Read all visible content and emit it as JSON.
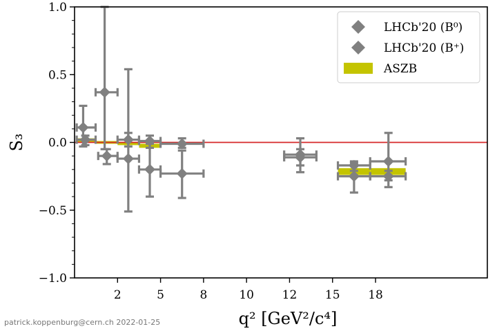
{
  "chart_data": {
    "type": "scatter",
    "ylabel": "S₃",
    "xlabel": "q² [GeV²/c⁴]",
    "xlim": [
      0,
      19.2
    ],
    "ylim": [
      -1.0,
      1.0
    ],
    "x_ticks": [
      2,
      5,
      8,
      10,
      12,
      15,
      18
    ],
    "x_tick_positions": [
      2.0,
      4.0,
      6.0,
      8.0,
      10.0,
      12.0,
      14.0
    ],
    "x_tick_labels": [
      "2",
      "5",
      "8",
      "10",
      "12",
      "15",
      "18"
    ],
    "y_ticks": [
      -1.0,
      -0.5,
      0.0,
      0.5,
      1.0
    ],
    "y_tick_labels": [
      "−1.0",
      "−0.5",
      "0.0",
      "0.5",
      "1.0"
    ],
    "grid": false,
    "reference_line": {
      "y": 0.0,
      "color": "#d62728"
    },
    "legend": {
      "placement": "top-right",
      "entries": [
        "LHCb'20 (B⁰)",
        "LHCb'20 (B⁺)",
        "ASZB"
      ]
    },
    "series": [
      {
        "name": "LHCb'20 (B⁰)",
        "color": "#808080",
        "marker": "diamond",
        "points": [
          {
            "x": 0.5,
            "y": 0.02,
            "xlo": 0.1,
            "xhi": 0.98,
            "ylo": -0.02,
            "yhi": 0.05
          },
          {
            "x": 1.5,
            "y": -0.1,
            "xlo": 1.1,
            "xhi": 2.0,
            "ylo": -0.16,
            "yhi": -0.05
          },
          {
            "x": 2.5,
            "y": 0.02,
            "xlo": 2.0,
            "xhi": 3.0,
            "ylo": -0.03,
            "yhi": 0.07
          },
          {
            "x": 3.5,
            "y": 0.01,
            "xlo": 3.0,
            "xhi": 4.0,
            "ylo": -0.04,
            "yhi": 0.05
          },
          {
            "x": 5.0,
            "y": -0.01,
            "xlo": 4.0,
            "xhi": 6.0,
            "ylo": -0.04,
            "yhi": 0.03
          },
          {
            "x": 10.5,
            "y": -0.11,
            "xlo": 9.75,
            "xhi": 11.25,
            "ylo": -0.17,
            "yhi": -0.05
          },
          {
            "x": 13.0,
            "y": -0.17,
            "xlo": 12.25,
            "xhi": 13.75,
            "ylo": -0.21,
            "yhi": -0.14
          },
          {
            "x": 14.6,
            "y": -0.25,
            "xlo": 13.75,
            "xhi": 15.4,
            "ylo": -0.28,
            "yhi": -0.21
          }
        ]
      },
      {
        "name": "LHCb'20 (B⁺)",
        "color": "#808080",
        "marker": "diamond",
        "points": [
          {
            "x": 0.4,
            "y": 0.11,
            "xlo": 0.1,
            "xhi": 0.98,
            "ylo": -0.03,
            "yhi": 0.27
          },
          {
            "x": 1.4,
            "y": 0.37,
            "xlo": 0.98,
            "xhi": 2.0,
            "ylo": -0.05,
            "yhi": 1.0
          },
          {
            "x": 2.5,
            "y": -0.12,
            "xlo": 2.0,
            "xhi": 3.0,
            "ylo": -0.51,
            "yhi": 0.54
          },
          {
            "x": 3.5,
            "y": -0.2,
            "xlo": 3.0,
            "xhi": 4.0,
            "ylo": -0.4,
            "yhi": -0.01
          },
          {
            "x": 5.0,
            "y": -0.23,
            "xlo": 4.0,
            "xhi": 6.0,
            "ylo": -0.41,
            "yhi": -0.06
          },
          {
            "x": 10.5,
            "y": -0.09,
            "xlo": 9.75,
            "xhi": 11.25,
            "ylo": -0.22,
            "yhi": 0.03
          },
          {
            "x": 13.0,
            "y": -0.25,
            "xlo": 12.25,
            "xhi": 13.75,
            "ylo": -0.37,
            "yhi": -0.15
          },
          {
            "x": 14.6,
            "y": -0.14,
            "xlo": 13.75,
            "xhi": 15.4,
            "ylo": -0.33,
            "yhi": 0.07
          }
        ]
      },
      {
        "name": "ASZB",
        "color": "#c4c400",
        "type": "band",
        "bins": [
          {
            "xlo": 0.1,
            "xhi": 0.98,
            "ylo": 0.0,
            "yhi": 0.03
          },
          {
            "xlo": 0.98,
            "xhi": 2.0,
            "ylo": -0.01,
            "yhi": 0.01
          },
          {
            "xlo": 2.0,
            "xhi": 3.0,
            "ylo": -0.02,
            "yhi": 0.0
          },
          {
            "xlo": 3.0,
            "xhi": 4.0,
            "ylo": -0.04,
            "yhi": -0.01
          },
          {
            "xlo": 12.25,
            "xhi": 13.75,
            "ylo": -0.24,
            "yhi": -0.19
          },
          {
            "xlo": 13.75,
            "xhi": 15.4,
            "ylo": -0.24,
            "yhi": -0.19
          }
        ]
      }
    ]
  },
  "footer": "patrick.koppenburg@cern.ch  2022-01-25"
}
